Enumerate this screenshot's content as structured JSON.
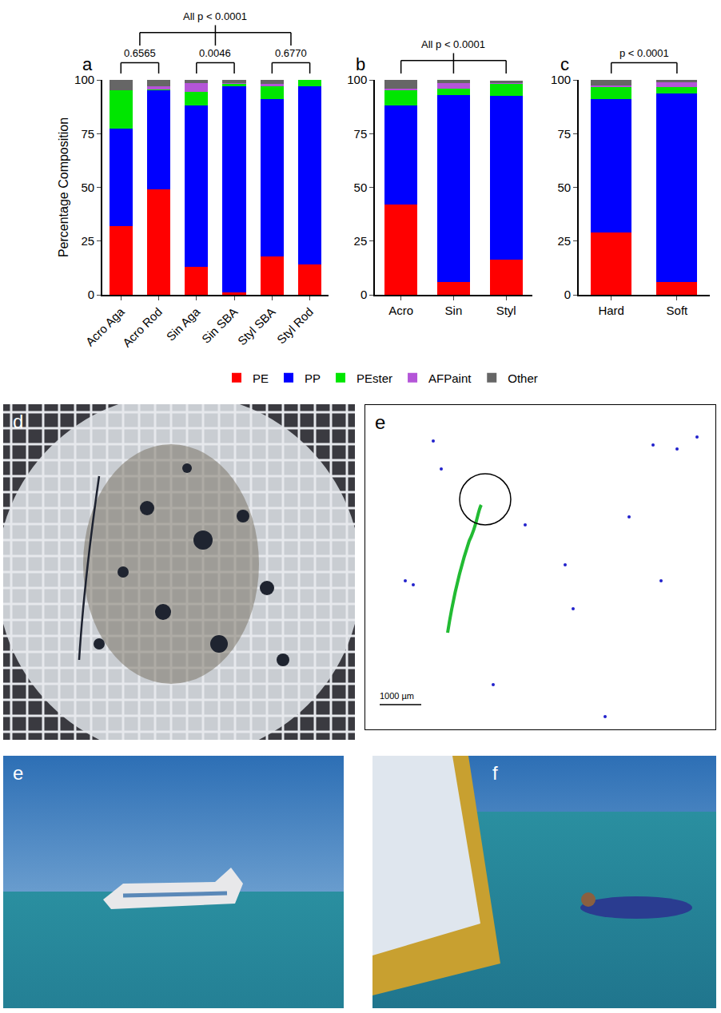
{
  "chart_data": [
    {
      "type": "bar",
      "panel": "a",
      "stacked": true,
      "grid": false,
      "legend": "bottom",
      "y_label": "Percentage Composition",
      "categories": [
        "Acro Aga",
        "Acro Rod",
        "Sin Aga",
        "Sin SBA",
        "Styl SBA",
        "Styl Rod"
      ],
      "ylim": [
        0,
        100
      ],
      "yticks": [
        0,
        25,
        50,
        75,
        100
      ],
      "series": [
        {
          "name": "PE",
          "color": "#ff0000",
          "values": [
            32,
            49,
            13,
            1,
            18,
            14
          ]
        },
        {
          "name": "PP",
          "color": "#0000ff",
          "values": [
            45.5,
            46,
            75,
            96,
            73,
            83
          ]
        },
        {
          "name": "PEster",
          "color": "#00e600",
          "values": [
            17.5,
            0.5,
            6.5,
            1,
            6,
            3
          ]
        },
        {
          "name": "AFPaint",
          "color": "#b455d8",
          "values": [
            0,
            1.5,
            4,
            0.5,
            1,
            0
          ]
        },
        {
          "name": "Other",
          "color": "#666666",
          "values": [
            5,
            3,
            1.5,
            1.5,
            2,
            0
          ]
        }
      ],
      "comparisons": [
        {
          "label": "0.6565",
          "between": [
            "Acro Aga",
            "Acro Rod"
          ]
        },
        {
          "label": "0.0046",
          "between": [
            "Sin Aga",
            "Sin SBA"
          ]
        },
        {
          "label": "0.6770",
          "between": [
            "Styl SBA",
            "Styl Rod"
          ]
        },
        {
          "label": "All p < 0.0001",
          "groups": [
            [
              "Acro Aga",
              "Acro Rod"
            ],
            [
              "Sin Aga",
              "Sin SBA"
            ],
            [
              "Styl SBA",
              "Styl Rod"
            ]
          ]
        }
      ]
    },
    {
      "type": "bar",
      "panel": "b",
      "stacked": true,
      "grid": false,
      "categories": [
        "Acro",
        "Sin",
        "Styl"
      ],
      "ylim": [
        0,
        100
      ],
      "yticks": [
        0,
        25,
        50,
        75,
        100
      ],
      "series": [
        {
          "name": "PE",
          "color": "#ff0000",
          "values": [
            42,
            6,
            16.5
          ]
        },
        {
          "name": "PP",
          "color": "#0000ff",
          "values": [
            46,
            87,
            76
          ]
        },
        {
          "name": "PEster",
          "color": "#00e600",
          "values": [
            7,
            3,
            5.5
          ]
        },
        {
          "name": "AFPaint",
          "color": "#b455d8",
          "values": [
            1,
            2.5,
            0.5
          ]
        },
        {
          "name": "Other",
          "color": "#666666",
          "values": [
            4,
            1.5,
            1
          ]
        }
      ],
      "comparisons": [
        {
          "label": "All p < 0.0001",
          "groups": [
            [
              "Acro"
            ],
            [
              "Sin"
            ],
            [
              "Styl"
            ]
          ]
        }
      ]
    },
    {
      "type": "bar",
      "panel": "c",
      "stacked": true,
      "grid": false,
      "categories": [
        "Hard",
        "Soft"
      ],
      "ylim": [
        0,
        100
      ],
      "yticks": [
        0,
        25,
        50,
        75,
        100
      ],
      "series": [
        {
          "name": "PE",
          "color": "#ff0000",
          "values": [
            29,
            6
          ]
        },
        {
          "name": "PP",
          "color": "#0000ff",
          "values": [
            62,
            87.5
          ]
        },
        {
          "name": "PEster",
          "color": "#00e600",
          "values": [
            5.5,
            3
          ]
        },
        {
          "name": "AFPaint",
          "color": "#b455d8",
          "values": [
            1,
            2.5
          ]
        },
        {
          "name": "Other",
          "color": "#666666",
          "values": [
            2.5,
            1
          ]
        }
      ],
      "comparisons": [
        {
          "label": "p < 0.0001",
          "between": [
            "Hard",
            "Soft"
          ]
        }
      ]
    }
  ],
  "panels": [
    {
      "letter": "d"
    },
    {
      "letter": "e",
      "scale_bar": "1000 µm"
    },
    {
      "letter": "e"
    },
    {
      "letter": "f"
    }
  ]
}
